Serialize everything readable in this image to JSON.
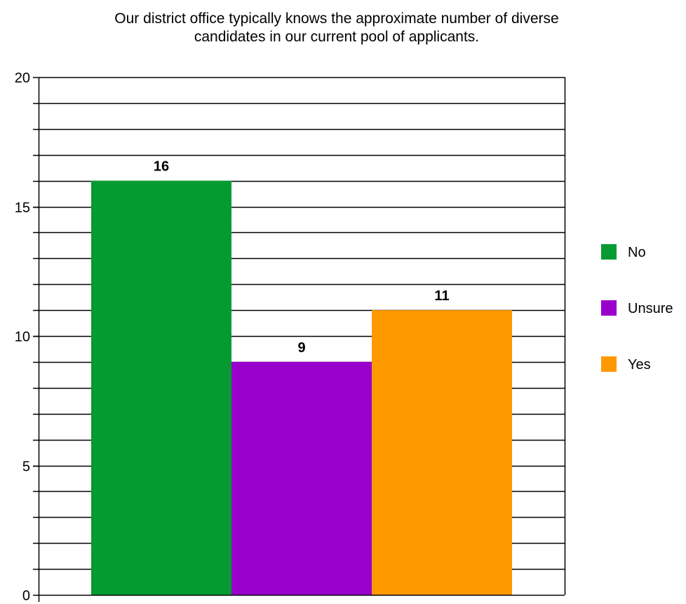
{
  "chart_data": {
    "type": "bar",
    "title_lines": [
      "Our district office typically knows the approximate number of diverse",
      "candidates in our current pool of applicants."
    ],
    "categories": [
      "No",
      "Unsure",
      "Yes"
    ],
    "values": [
      16,
      9,
      11
    ],
    "value_labels": [
      "16",
      "9",
      "11"
    ],
    "colors": [
      "#069a33",
      "#9900cc",
      "#ff9900"
    ],
    "ylim": [
      0,
      20
    ],
    "yticks": [
      0,
      5,
      10,
      15,
      20
    ],
    "ytick_labels": [
      "0",
      "5",
      "10",
      "15",
      "20"
    ],
    "grid_step": 1,
    "grid": true,
    "legend": {
      "position": "right",
      "items": [
        {
          "label": "No",
          "color": "#069a33"
        },
        {
          "label": "Unsure",
          "color": "#9900cc"
        },
        {
          "label": "Yes",
          "color": "#ff9900"
        }
      ]
    }
  }
}
